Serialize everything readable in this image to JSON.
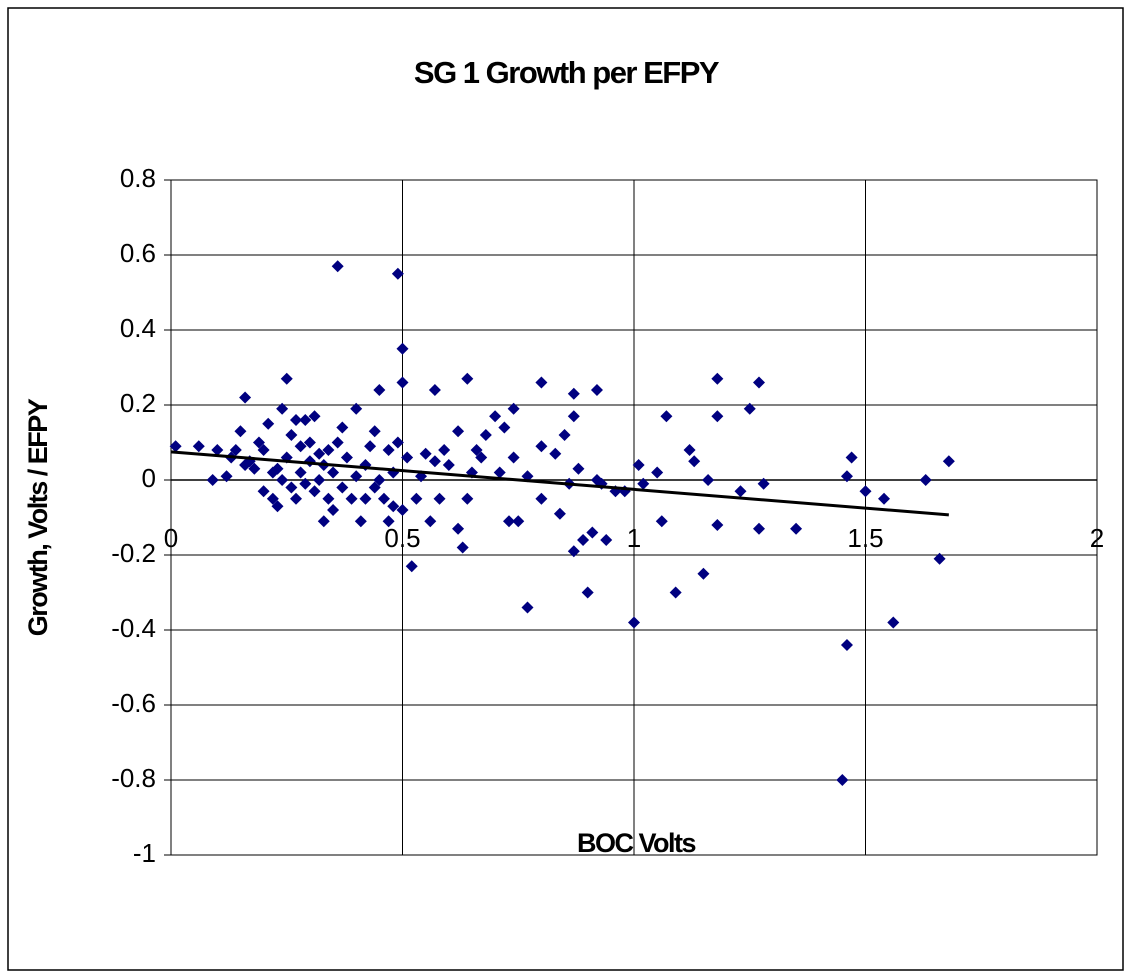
{
  "chart_data": {
    "type": "scatter",
    "title": "SG 1 Growth per EFPY",
    "x_label": "BOC Volts",
    "y_label": "Growth, Volts / EFPY",
    "xlim": [
      0,
      2
    ],
    "xticks": [
      0,
      0.5,
      1,
      1.5,
      2
    ],
    "ylim": [
      -1,
      0.8
    ],
    "yticks": [
      0.8,
      0.6,
      0.4,
      0.2,
      0,
      -0.2,
      -0.4,
      -0.6,
      -0.8,
      -1
    ],
    "grid": true,
    "color": "#000080",
    "x": [
      0.01,
      0.06,
      0.09,
      0.1,
      0.12,
      0.13,
      0.14,
      0.15,
      0.16,
      0.16,
      0.17,
      0.18,
      0.19,
      0.2,
      0.2,
      0.21,
      0.22,
      0.22,
      0.23,
      0.23,
      0.24,
      0.24,
      0.25,
      0.25,
      0.26,
      0.26,
      0.27,
      0.27,
      0.28,
      0.28,
      0.29,
      0.29,
      0.3,
      0.3,
      0.31,
      0.31,
      0.32,
      0.32,
      0.33,
      0.33,
      0.34,
      0.34,
      0.35,
      0.35,
      0.36,
      0.36,
      0.37,
      0.37,
      0.38,
      0.39,
      0.4,
      0.4,
      0.41,
      0.42,
      0.42,
      0.43,
      0.44,
      0.44,
      0.45,
      0.45,
      0.46,
      0.47,
      0.47,
      0.48,
      0.48,
      0.49,
      0.49,
      0.5,
      0.5,
      0.5,
      0.51,
      0.52,
      0.53,
      0.54,
      0.55,
      0.56,
      0.57,
      0.57,
      0.58,
      0.59,
      0.6,
      0.62,
      0.62,
      0.63,
      0.64,
      0.64,
      0.65,
      0.66,
      0.67,
      0.68,
      0.7,
      0.71,
      0.72,
      0.73,
      0.74,
      0.74,
      0.75,
      0.77,
      0.77,
      0.8,
      0.8,
      0.8,
      0.83,
      0.84,
      0.85,
      0.86,
      0.87,
      0.87,
      0.87,
      0.88,
      0.89,
      0.9,
      0.91,
      0.92,
      0.92,
      0.93,
      0.94,
      0.96,
      0.98,
      1.0,
      1.01,
      1.02,
      1.05,
      1.06,
      1.07,
      1.09,
      1.12,
      1.13,
      1.15,
      1.16,
      1.18,
      1.18,
      1.18,
      1.23,
      1.25,
      1.27,
      1.27,
      1.28,
      1.35,
      1.45,
      1.46,
      1.46,
      1.47,
      1.5,
      1.54,
      1.56,
      1.63,
      1.66,
      1.68
    ],
    "values": [
      0.09,
      0.09,
      0.0,
      0.08,
      0.01,
      0.06,
      0.08,
      0.13,
      0.04,
      0.22,
      0.05,
      0.03,
      0.1,
      -0.03,
      0.08,
      0.15,
      0.02,
      -0.05,
      0.03,
      -0.07,
      0.19,
      0.0,
      0.27,
      0.06,
      -0.02,
      0.12,
      0.16,
      -0.05,
      0.02,
      0.09,
      0.16,
      -0.01,
      0.05,
      0.1,
      -0.03,
      0.17,
      0.07,
      0.0,
      -0.11,
      0.04,
      -0.05,
      0.08,
      0.02,
      -0.08,
      0.1,
      0.57,
      -0.02,
      0.14,
      0.06,
      -0.05,
      0.19,
      0.01,
      -0.11,
      0.04,
      -0.05,
      0.09,
      -0.02,
      0.13,
      0.24,
      0.0,
      -0.05,
      0.08,
      -0.11,
      0.02,
      -0.07,
      0.55,
      0.1,
      0.35,
      0.26,
      -0.08,
      0.06,
      -0.23,
      -0.05,
      0.01,
      0.07,
      -0.11,
      0.24,
      0.05,
      -0.05,
      0.08,
      0.04,
      0.13,
      -0.13,
      -0.18,
      0.27,
      -0.05,
      0.02,
      0.08,
      0.06,
      0.12,
      0.17,
      0.02,
      0.14,
      -0.11,
      0.19,
      0.06,
      -0.11,
      0.01,
      -0.34,
      0.26,
      0.09,
      -0.05,
      0.07,
      -0.09,
      0.12,
      -0.01,
      0.23,
      0.17,
      -0.19,
      0.03,
      -0.16,
      -0.3,
      -0.14,
      0.24,
      0.0,
      -0.01,
      -0.16,
      -0.03,
      -0.03,
      -0.38,
      0.04,
      -0.01,
      0.02,
      -0.11,
      0.17,
      -0.3,
      0.08,
      0.05,
      -0.25,
      0.0,
      0.27,
      0.17,
      -0.12,
      -0.03,
      0.19,
      0.26,
      -0.13,
      -0.01,
      -0.13,
      -0.8,
      -0.44,
      0.01,
      0.06,
      -0.03,
      -0.05,
      -0.38,
      0.0,
      -0.21,
      0.05
    ],
    "trendline": {
      "x": [
        0,
        1.68
      ],
      "values": [
        0.075,
        -0.093
      ],
      "color": "#000000"
    }
  }
}
